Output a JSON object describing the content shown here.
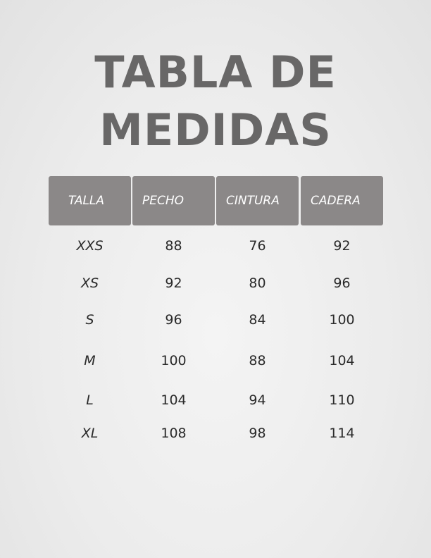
{
  "title": {
    "line1": "TABLA DE",
    "line2": "MEDIDAS"
  },
  "table": {
    "headers": [
      "TALLA",
      "PECHO",
      "CINTURA",
      "CADERA"
    ],
    "rows": [
      [
        "XXS",
        "88",
        "76",
        "92"
      ],
      [
        "XS",
        "92",
        "80",
        "96"
      ],
      [
        "S",
        "96",
        "84",
        "100"
      ],
      [
        "M",
        "100",
        "88",
        "104"
      ],
      [
        "L",
        "104",
        "94",
        "110"
      ],
      [
        "XL",
        "108",
        "98",
        "114"
      ]
    ]
  },
  "colors": {
    "header_bg": "#8b8888",
    "title": "#686767"
  }
}
